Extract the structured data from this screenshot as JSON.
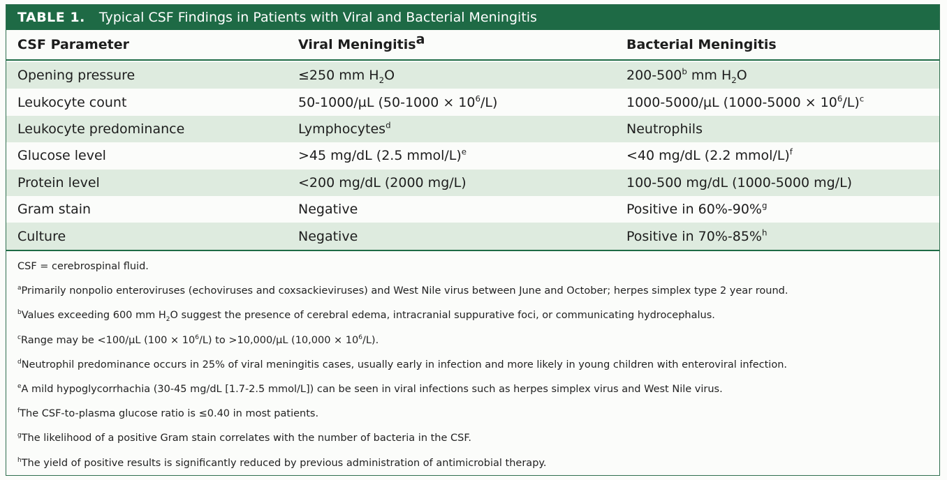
{
  "table": {
    "label": "TABLE 1.",
    "title": "Typical CSF Findings in Patients with Viral and Bacterial Meningitis",
    "headers": {
      "parameter": "CSF Parameter",
      "viral": "Viral Meningitis",
      "viral_mark": "a",
      "bacterial": "Bacterial Meningitis"
    },
    "rows": [
      {
        "parameter": "Opening pressure",
        "viral": [
          {
            "t": "≤250 mm H"
          },
          {
            "sub": "2"
          },
          {
            "t": "O"
          }
        ],
        "bacterial": [
          {
            "t": "200-500"
          },
          {
            "sup": "b"
          },
          {
            "t": " mm H"
          },
          {
            "sub": "2"
          },
          {
            "t": "O"
          }
        ]
      },
      {
        "parameter": "Leukocyte count",
        "viral": [
          {
            "t": "50-1000/µL (50-1000 × 10"
          },
          {
            "sup": "6"
          },
          {
            "t": "/L)"
          }
        ],
        "bacterial": [
          {
            "t": "1000-5000/µL (1000-5000 × 10"
          },
          {
            "sup": "6"
          },
          {
            "t": "/L)"
          },
          {
            "sup": "c"
          }
        ]
      },
      {
        "parameter": "Leukocyte predominance",
        "viral": [
          {
            "t": "Lymphocytes"
          },
          {
            "sup": "d"
          }
        ],
        "bacterial": [
          {
            "t": "Neutrophils"
          }
        ]
      },
      {
        "parameter": "Glucose level",
        "viral": [
          {
            "t": ">45 mg/dL (2.5 mmol/L)"
          },
          {
            "sup": "e"
          }
        ],
        "bacterial": [
          {
            "t": "<40 mg/dL (2.2 mmol/L)"
          },
          {
            "sup": "f"
          }
        ]
      },
      {
        "parameter": "Protein level",
        "viral": [
          {
            "t": "<200 mg/dL (2000 mg/L)"
          }
        ],
        "bacterial": [
          {
            "t": "100-500 mg/dL (1000-5000 mg/L)"
          }
        ]
      },
      {
        "parameter": "Gram stain",
        "viral": [
          {
            "t": "Negative"
          }
        ],
        "bacterial": [
          {
            "t": "Positive in 60%-90%"
          },
          {
            "sup": "g"
          }
        ]
      },
      {
        "parameter": "Culture",
        "viral": [
          {
            "t": "Negative"
          }
        ],
        "bacterial": [
          {
            "t": "Positive in 70%-85%"
          },
          {
            "sup": "h"
          }
        ]
      }
    ],
    "footnotes": [
      [
        {
          "t": "CSF = cerebrospinal fluid."
        }
      ],
      [
        {
          "sup": "a"
        },
        {
          "t": "Primarily nonpolio enteroviruses (echoviruses and coxsackieviruses) and West Nile virus between June and October; herpes simplex type 2 year round."
        }
      ],
      [
        {
          "sup": "b"
        },
        {
          "t": "Values exceeding 600 mm H"
        },
        {
          "sub": "2"
        },
        {
          "t": "O suggest the presence of cerebral edema, intracranial suppurative foci, or communicating hydrocephalus."
        }
      ],
      [
        {
          "sup": "c"
        },
        {
          "t": "Range may be <100/µL (100 × 10"
        },
        {
          "sup": "6"
        },
        {
          "t": "/L) to >10,000/µL (10,000 × 10"
        },
        {
          "sup": "6"
        },
        {
          "t": "/L)."
        }
      ],
      [
        {
          "sup": "d"
        },
        {
          "t": "Neutrophil predominance occurs in 25% of viral meningitis cases, usually early in infection and more likely in young children with enteroviral infection."
        }
      ],
      [
        {
          "sup": "e"
        },
        {
          "t": "A mild hypoglycorrhachia (30-45 mg/dL [1.7-2.5 mmol/L]) can be seen in viral infections such as herpes simplex virus and West Nile virus."
        }
      ],
      [
        {
          "sup": "f"
        },
        {
          "t": "The CSF-to-plasma glucose ratio is ≤0.40 in most patients."
        }
      ],
      [
        {
          "sup": "g"
        },
        {
          "t": "The likelihood of a positive Gram stain correlates with the number of bacteria in the CSF."
        }
      ],
      [
        {
          "sup": "h"
        },
        {
          "t": "The yield of positive results is significantly reduced by previous administration of antimicrobial therapy."
        }
      ]
    ]
  }
}
